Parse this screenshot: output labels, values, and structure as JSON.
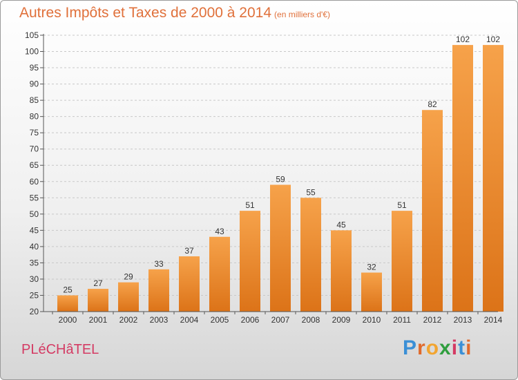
{
  "chart_data": {
    "type": "bar",
    "title": "Autres Impôts et Taxes de 2000 à 2014",
    "subtitle": "(en milliers d'€)",
    "xlabel": "",
    "ylabel": "",
    "categories": [
      "2000",
      "2001",
      "2002",
      "2003",
      "2004",
      "2005",
      "2006",
      "2007",
      "2008",
      "2009",
      "2010",
      "2011",
      "2012",
      "2013",
      "2014"
    ],
    "values": [
      25,
      27,
      29,
      33,
      37,
      43,
      51,
      59,
      55,
      45,
      32,
      51,
      82,
      102,
      102
    ],
    "ylim": [
      20,
      105
    ],
    "yticks": [
      20,
      25,
      30,
      35,
      40,
      45,
      50,
      55,
      60,
      65,
      70,
      75,
      80,
      85,
      90,
      95,
      100,
      105
    ],
    "grid": true,
    "bar_color": "#f0913a"
  },
  "footer": {
    "commune": "PLéCHâTEL",
    "brand_letters": [
      "P",
      "r",
      "o",
      "x",
      "i",
      "t",
      "i"
    ],
    "brand_colors": [
      "#3a8fd6",
      "#e06a2c",
      "#f2a531",
      "#2f9e3e",
      "#d43a63",
      "#3a8fd6",
      "#e06a2c"
    ]
  }
}
